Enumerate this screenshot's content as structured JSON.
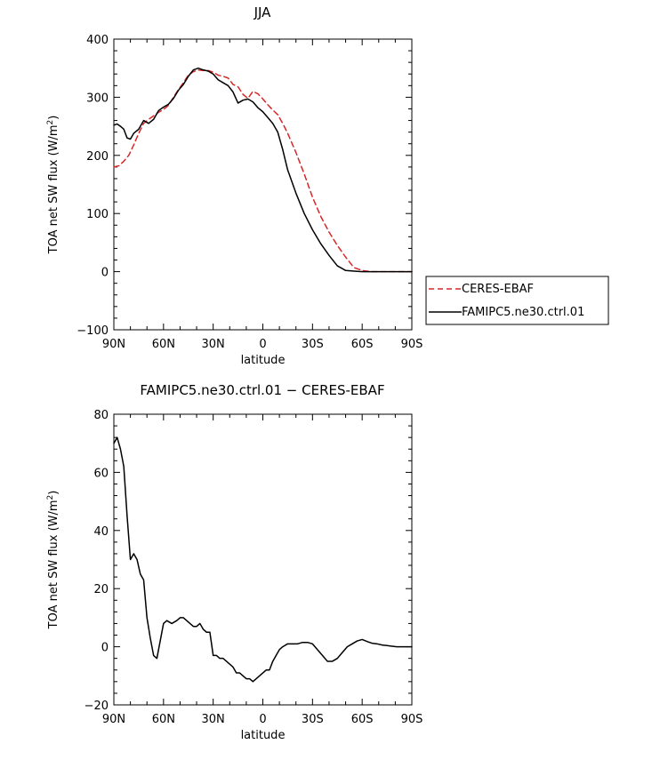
{
  "chart_data": [
    {
      "type": "line",
      "title": "JJA",
      "xlabel": "latitude",
      "ylabel": "TOA net SW flux (W/m²)",
      "ylabel_parts": {
        "main": "TOA net SW flux (W/m",
        "sup": "2",
        "end": ")"
      },
      "xlim": [
        90,
        -90
      ],
      "ylim": [
        -100,
        400
      ],
      "x_ticks": [
        90,
        60,
        30,
        0,
        -30,
        -60,
        -90
      ],
      "x_tick_labels": [
        "90N",
        "60N",
        "30N",
        "0",
        "30S",
        "60S",
        "90S"
      ],
      "y_ticks": [
        -100,
        0,
        100,
        200,
        300,
        400
      ],
      "y_tick_labels": [
        "−100",
        "0",
        "100",
        "200",
        "300",
        "400"
      ],
      "grid": false,
      "legend_position": "right",
      "series": [
        {
          "name": "CERES-EBAF",
          "color": "#d62728",
          "dash": true,
          "x": [
            90,
            87,
            84,
            81,
            78,
            75,
            72,
            69,
            66,
            63,
            60,
            57,
            54,
            51,
            48,
            45,
            42,
            39,
            36,
            33,
            30,
            27,
            24,
            21,
            18,
            15,
            12,
            9,
            6,
            3,
            0,
            -3,
            -6,
            -9,
            -12,
            -15,
            -20,
            -25,
            -30,
            -35,
            -40,
            -45,
            -50,
            -55,
            -60,
            -65,
            -70,
            -75,
            -80,
            -85,
            -90
          ],
          "y": [
            180,
            182,
            190,
            200,
            218,
            238,
            255,
            262,
            268,
            274,
            279,
            286,
            300,
            313,
            325,
            338,
            344,
            347,
            346,
            346,
            343,
            338,
            336,
            333,
            322,
            318,
            305,
            298,
            310,
            306,
            297,
            287,
            278,
            270,
            255,
            238,
            205,
            168,
            128,
            95,
            68,
            45,
            25,
            7,
            2,
            0,
            0,
            0,
            0,
            0,
            0
          ]
        },
        {
          "name": "FAMIPC5.ne30.ctrl.01",
          "color": "#000000",
          "dash": false,
          "x": [
            90,
            88,
            86,
            84,
            82,
            80,
            78,
            75,
            72,
            69,
            66,
            63,
            60,
            57,
            54,
            51,
            48,
            45,
            42,
            39,
            36,
            33,
            30,
            27,
            24,
            21,
            18,
            15,
            12,
            9,
            6,
            3,
            0,
            -3,
            -6,
            -9,
            -12,
            -15,
            -20,
            -25,
            -30,
            -35,
            -40,
            -45,
            -50,
            -55,
            -60,
            -65,
            -70,
            -75,
            -80,
            -85,
            -90
          ],
          "y": [
            252,
            254,
            250,
            245,
            230,
            228,
            238,
            245,
            260,
            255,
            262,
            277,
            283,
            288,
            298,
            312,
            322,
            336,
            347,
            350,
            347,
            345,
            340,
            330,
            325,
            320,
            309,
            290,
            295,
            297,
            292,
            282,
            275,
            265,
            255,
            240,
            210,
            175,
            135,
            100,
            72,
            48,
            28,
            10,
            2,
            1,
            0,
            0,
            0,
            0,
            0,
            0,
            0
          ]
        }
      ]
    },
    {
      "type": "line",
      "title": "FAMIPC5.ne30.ctrl.01 − CERES-EBAF",
      "xlabel": "latitude",
      "ylabel": "TOA net SW flux (W/m²)",
      "ylabel_parts": {
        "main": "TOA net SW flux (W/m",
        "sup": "2",
        "end": ")"
      },
      "xlim": [
        90,
        -90
      ],
      "ylim": [
        -20,
        80
      ],
      "x_ticks": [
        90,
        60,
        30,
        0,
        -30,
        -60,
        -90
      ],
      "x_tick_labels": [
        "90N",
        "60N",
        "30N",
        "0",
        "30S",
        "60S",
        "90S"
      ],
      "y_ticks": [
        -20,
        0,
        20,
        40,
        60,
        80
      ],
      "y_tick_labels": [
        "−20",
        "0",
        "20",
        "40",
        "60",
        "80"
      ],
      "grid": false,
      "series": [
        {
          "color": "#000000",
          "dash": false,
          "x": [
            90,
            88,
            86,
            84,
            82,
            80,
            78,
            76,
            74,
            72,
            70,
            68,
            66,
            64,
            62,
            60,
            58,
            55,
            52,
            50,
            48,
            46,
            44,
            42,
            40,
            38,
            36,
            34,
            32,
            30,
            28,
            26,
            24,
            22,
            20,
            18,
            16,
            14,
            12,
            10,
            8,
            6,
            4,
            2,
            0,
            -2,
            -4,
            -6,
            -8,
            -10,
            -12,
            -15,
            -18,
            -21,
            -24,
            -27,
            -30,
            -33,
            -36,
            -39,
            -42,
            -45,
            -48,
            -51,
            -54,
            -57,
            -60,
            -63,
            -66,
            -69,
            -72,
            -75,
            -78,
            -81,
            -84,
            -87,
            -90
          ],
          "y": [
            70,
            72,
            68,
            62,
            45,
            30,
            32,
            30,
            25,
            23,
            10,
            3,
            -3,
            -4,
            2,
            8,
            9,
            8,
            9,
            10,
            10,
            9,
            8,
            7,
            7,
            8,
            6,
            5,
            5,
            -3,
            -3,
            -4,
            -4,
            -5,
            -6,
            -7,
            -9,
            -9,
            -10,
            -11,
            -11,
            -12,
            -11,
            -10,
            -9,
            -8,
            -8,
            -5,
            -3,
            -1,
            0,
            1,
            1,
            1,
            1.5,
            1.5,
            1,
            -1,
            -3,
            -5,
            -5,
            -4,
            -2,
            0,
            1,
            2,
            2.5,
            1.8,
            1.2,
            1,
            0.6,
            0.4,
            0.2,
            0,
            0,
            0,
            0
          ]
        }
      ]
    }
  ]
}
